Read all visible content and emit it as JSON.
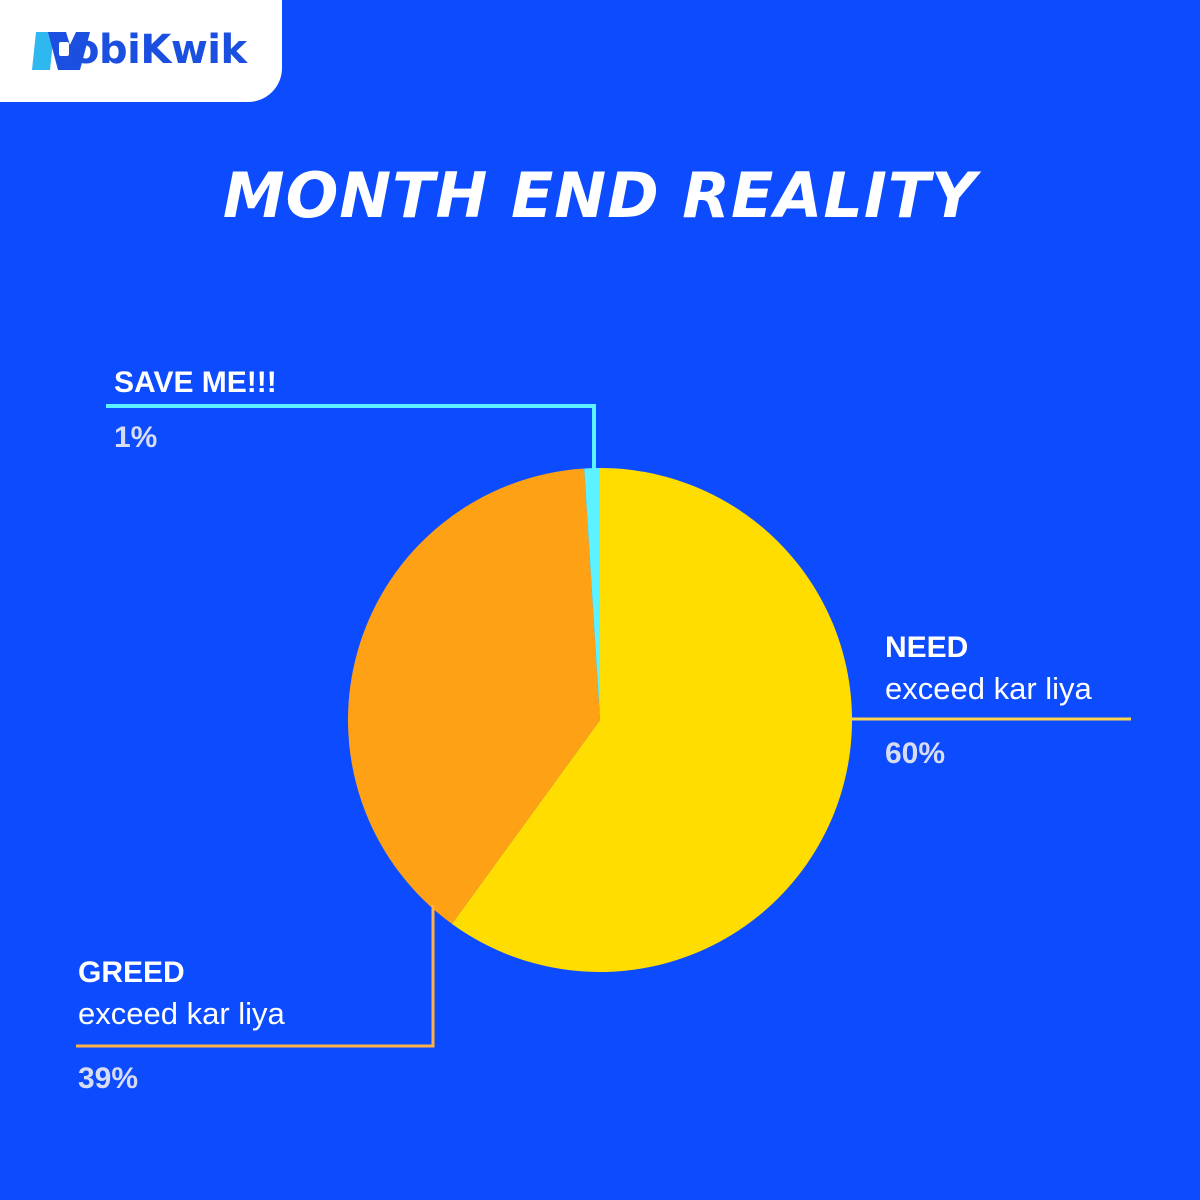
{
  "brand": {
    "name": "MobiKwik",
    "logo_mark_text": "M",
    "wordmark_text": "obiKwik",
    "color": "#1a4fe0"
  },
  "title": "MONTH END REALITY",
  "colors": {
    "background": "#0d4bff",
    "need": "#ffdd00",
    "greed": "#ffa114",
    "save": "#5cf2ff",
    "need_line": "#ffd54a",
    "greed_line": "#ffb347",
    "save_line": "#5cf2ff"
  },
  "chart_data": {
    "type": "pie",
    "title": "MONTH END REALITY",
    "start": "12 o'clock, clockwise",
    "slices": [
      {
        "name": "NEED",
        "sublabel": "exceed kar liya",
        "value": 60,
        "label": "60%",
        "color": "#ffdd00"
      },
      {
        "name": "GREED",
        "sublabel": "exceed kar liya",
        "value": 39,
        "label": "39%",
        "color": "#ffa114"
      },
      {
        "name": "SAVE ME!!!",
        "sublabel": "",
        "value": 1,
        "label": "1%",
        "color": "#5cf2ff"
      }
    ]
  }
}
